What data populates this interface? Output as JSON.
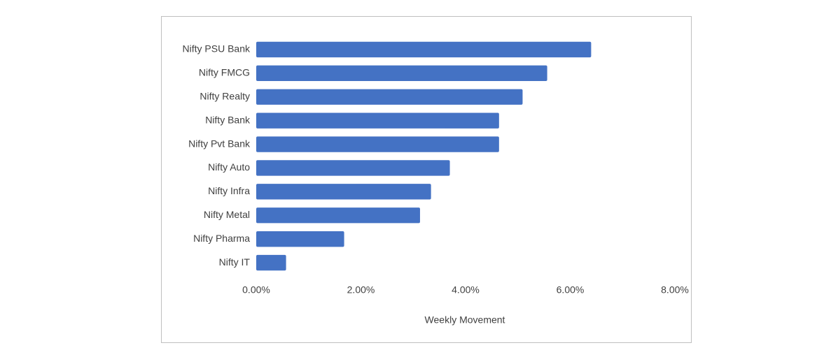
{
  "chart_data": {
    "type": "bar",
    "orientation": "horizontal",
    "x_label": "Weekly Movement",
    "categories": [
      "Nifty PSU Bank",
      "Nifty FMCG",
      "Nifty Realty",
      "Nifty Bank",
      "Nifty Pvt Bank",
      "Nifty Auto",
      "Nifty Infra",
      "Nifty Metal",
      "Nifty Pharma",
      "Nifty IT"
    ],
    "values": [
      6.4,
      5.56,
      5.09,
      4.64,
      4.64,
      3.7,
      3.34,
      3.13,
      1.68,
      0.57
    ],
    "color": "#4472c4",
    "xlim": [
      0,
      8
    ],
    "xticks": [
      {
        "value": 0,
        "label": "0.00%"
      },
      {
        "value": 2,
        "label": "2.00%"
      },
      {
        "value": 4,
        "label": "4.00%"
      },
      {
        "value": 6,
        "label": "6.00%"
      },
      {
        "value": 8,
        "label": "8.00%"
      }
    ],
    "grid": false
  }
}
